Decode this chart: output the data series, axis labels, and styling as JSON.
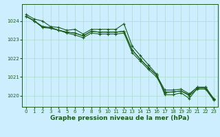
{
  "title": "Graphe pression niveau de la mer (hPa)",
  "bg_color": "#cceeff",
  "grid_color": "#aaddcc",
  "line_color": "#1a5c1a",
  "xlim": [
    -0.5,
    23.5
  ],
  "ylim": [
    1019.4,
    1024.9
  ],
  "yticks": [
    1020,
    1021,
    1022,
    1023,
    1024
  ],
  "xticks": [
    0,
    1,
    2,
    3,
    4,
    5,
    6,
    7,
    8,
    9,
    10,
    11,
    12,
    13,
    14,
    15,
    16,
    17,
    18,
    19,
    20,
    21,
    22,
    23
  ],
  "series": [
    [
      1024.35,
      1024.1,
      1024.0,
      1023.7,
      1023.65,
      1023.5,
      1023.55,
      1023.3,
      1023.55,
      1023.55,
      1023.55,
      1023.55,
      1023.85,
      1022.65,
      1022.15,
      1021.65,
      1021.15,
      1020.05,
      1020.05,
      1020.15,
      1019.85,
      1020.4,
      1020.4,
      1019.8
    ],
    [
      1024.25,
      1024.0,
      1023.7,
      1023.65,
      1023.5,
      1023.4,
      1023.35,
      1023.2,
      1023.45,
      1023.4,
      1023.4,
      1023.4,
      1023.45,
      1022.45,
      1021.95,
      1021.5,
      1021.1,
      1020.15,
      1020.2,
      1020.25,
      1020.05,
      1020.45,
      1020.45,
      1019.8
    ],
    [
      1024.25,
      1024.0,
      1023.7,
      1023.65,
      1023.5,
      1023.4,
      1023.35,
      1023.2,
      1023.45,
      1023.4,
      1023.4,
      1023.4,
      1023.45,
      1022.45,
      1021.95,
      1021.5,
      1021.1,
      1020.3,
      1020.3,
      1020.35,
      1020.1,
      1020.45,
      1020.45,
      1019.85
    ],
    [
      1024.25,
      1024.0,
      1023.65,
      1023.6,
      1023.5,
      1023.35,
      1023.25,
      1023.1,
      1023.35,
      1023.3,
      1023.3,
      1023.3,
      1023.35,
      1022.3,
      1021.85,
      1021.4,
      1021.0,
      1020.2,
      1020.2,
      1020.25,
      1020.0,
      1020.35,
      1020.35,
      1019.75
    ]
  ],
  "marker": "+",
  "markersize": 3.5,
  "linewidth": 0.8,
  "tick_fontsize": 5.0,
  "xlabel_fontsize": 6.5
}
